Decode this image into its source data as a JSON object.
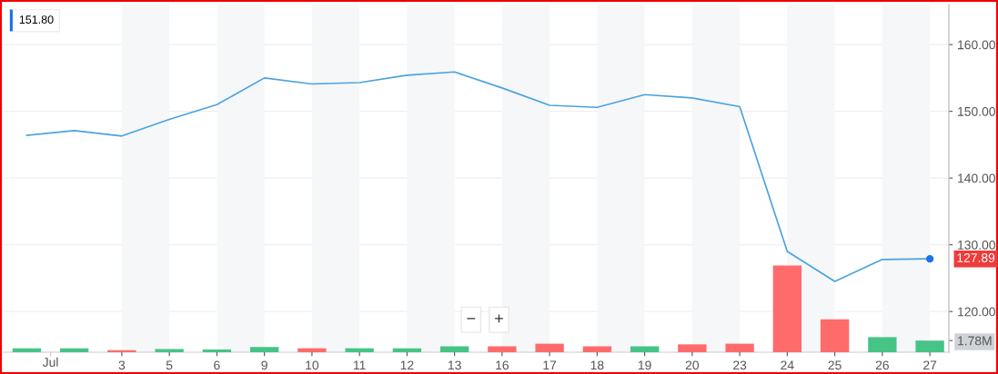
{
  "chart_data": {
    "type": "line",
    "categories": [
      null,
      null,
      "3",
      "5",
      "6",
      "9",
      "10",
      "11",
      "12",
      "13",
      "16",
      "17",
      "18",
      "19",
      "20",
      "23",
      "24",
      "25",
      "26",
      "27"
    ],
    "ylim": [
      113.9,
      166
    ],
    "yticks": [
      {
        "value": 120,
        "label": "120.00"
      },
      {
        "value": 130,
        "label": "130.00"
      },
      {
        "value": 140,
        "label": "140.00"
      },
      {
        "value": 150,
        "label": "150.00"
      },
      {
        "value": 160,
        "label": "160.00"
      }
    ],
    "y2lim": [
      0,
      53
    ],
    "y2ticks": [
      {
        "value": 1.78,
        "label": "1.78M"
      }
    ],
    "grid": "y",
    "bands": [
      {
        "axis": "x",
        "from": "3",
        "to": "5",
        "color": "#f5f7f8"
      },
      {
        "axis": "x",
        "from": "6",
        "to": "9",
        "color": "#f5f7f8"
      },
      {
        "axis": "x",
        "from": "10",
        "to": "11",
        "color": "#f5f7f8"
      },
      {
        "axis": "x",
        "from": "12",
        "to": "13",
        "color": "#f5f7f8"
      },
      {
        "axis": "x",
        "from": "16",
        "to": "17",
        "color": "#f5f7f8"
      },
      {
        "axis": "x",
        "from": "18",
        "to": "19",
        "color": "#f5f7f8"
      },
      {
        "axis": "x",
        "from": "20",
        "to": "23",
        "color": "#f5f7f8"
      },
      {
        "axis": "x",
        "from": "24",
        "to": "25",
        "color": "#f5f7f8"
      },
      {
        "axis": "x",
        "from": "26",
        "to": "27",
        "color": "#f5f7f8"
      }
    ],
    "series": [
      {
        "color": "#4aa3e0",
        "values": [
          146.4,
          147.1,
          146.3,
          148.8,
          151.0,
          155.0,
          154.1,
          154.3,
          155.4,
          155.9,
          153.5,
          150.9,
          150.6,
          152.5,
          152.0,
          150.7,
          129.0,
          124.5,
          127.8,
          127.89
        ]
      },
      {
        "type": "bar",
        "axis": "y2",
        "values": [
          0.6,
          0.6,
          0.3,
          0.5,
          0.4,
          0.8,
          0.6,
          0.6,
          0.6,
          0.9,
          0.9,
          1.3,
          0.9,
          0.9,
          1.2,
          1.3,
          13.2,
          5.0,
          2.3,
          1.78
        ],
        "colors": [
          "#45c486",
          "#45c486",
          "#ff6b6b",
          "#45c486",
          "#45c486",
          "#45c486",
          "#ff6b6b",
          "#45c486",
          "#45c486",
          "#45c486",
          "#ff6b6b",
          "#ff6b6b",
          "#ff6b6b",
          "#45c486",
          "#ff6b6b",
          "#ff6b6b",
          "#ff6b6b",
          "#ff6b6b",
          "#45c486",
          "#45c486"
        ]
      }
    ],
    "annotations": [
      "151.80",
      "Jul",
      "−",
      "+",
      {
        "text": "127.89",
        "x": "27",
        "y": 127.89
      }
    ]
  }
}
